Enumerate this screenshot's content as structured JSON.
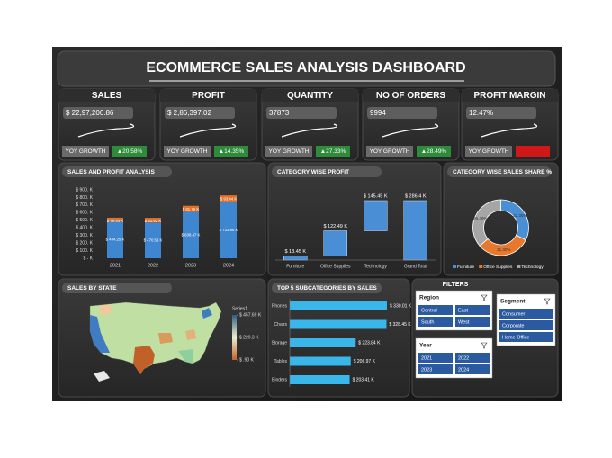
{
  "title": "ECOMMERCE SALES ANALYSIS DASHBOARD",
  "kpis": [
    {
      "label": "SALES",
      "value": "$ 22,97,200.86",
      "growth_label": "YOY GROWTH",
      "growth": "▲20.58%",
      "growth_color": "#2e8b3a"
    },
    {
      "label": "PROFIT",
      "value": "$ 2,86,397.02",
      "growth_label": "YOY GROWTH",
      "growth": "▲14.35%",
      "growth_color": "#2e8b3a"
    },
    {
      "label": "QUANTITY",
      "value": "37873",
      "growth_label": "YOY GROWTH",
      "growth": "▲27.33%",
      "growth_color": "#2e8b3a"
    },
    {
      "label": "NO OF ORDERS",
      "value": "9994",
      "growth_label": "YOY GROWTH",
      "growth": "▲28.49%",
      "growth_color": "#2e8b3a"
    },
    {
      "label": "PROFIT MARGIN",
      "value": "12.47%",
      "growth_label": "YOY GROWTH",
      "growth_color": "#d01818"
    }
  ],
  "chart_data": [
    {
      "type": "stacked_bar",
      "title": "SALES AND PROFIT ANALYSIS",
      "categories": [
        "2021",
        "2022",
        "2023",
        "2024"
      ],
      "series": [
        {
          "color": "#3f86d0",
          "values": [
            484.25,
            470.53,
            608.47,
            733.95
          ],
          "value_labels": [
            "$ 484.25 K",
            "$ 470.53 K",
            "$ 608.47 K",
            "$ 733.95 K"
          ]
        },
        {
          "color": "#e0712a",
          "values": [
            49.54,
            61.62,
            81.79,
            93.44
          ],
          "value_labels": [
            "$ 49.54 K",
            "$ 61.62 K",
            "$ 81.79 K",
            "$ 93.44 K"
          ]
        }
      ],
      "ylim": [
        0,
        900
      ],
      "yticks": [
        {
          "value": 0,
          "label": "$ - K"
        },
        {
          "value": 100,
          "label": "$ 100. K"
        },
        {
          "value": 200,
          "label": "$ 200. K"
        },
        {
          "value": 300,
          "label": "$ 300. K"
        },
        {
          "value": 400,
          "label": "$ 400. K"
        },
        {
          "value": 500,
          "label": "$ 500. K"
        },
        {
          "value": 600,
          "label": "$ 600. K"
        },
        {
          "value": 700,
          "label": "$ 700. K"
        },
        {
          "value": 800,
          "label": "$ 800. K"
        },
        {
          "value": 900,
          "label": "$ 900. K"
        }
      ]
    },
    {
      "type": "waterfall",
      "title": "CATEGORY WISE PROFIT",
      "categories": [
        "Furniture",
        "Office Supplies",
        "Technology",
        "Grand Total"
      ],
      "values": [
        18.45,
        122.49,
        145.45,
        286.4
      ],
      "value_labels": [
        "$ 18.45 K",
        "$ 122.49 K",
        "$ 145.45 K",
        "$ 286.4 K"
      ],
      "color": "#4a8fd6"
    },
    {
      "type": "donut",
      "title": "CATEGORY WISE SALES SHARE %",
      "categories": [
        "Furniture",
        "Office Supplies",
        "Technology"
      ],
      "values": [
        32.3,
        31.3,
        36.4
      ],
      "value_labels": [
        "32.30%",
        "31.30%",
        "36.40%"
      ],
      "colors": [
        "#4a8fd6",
        "#e8782c",
        "#a6a6a6"
      ]
    },
    {
      "type": "map",
      "title": "SALES BY STATE",
      "legend_title": "Series1",
      "colors": [
        "#2f5d86",
        "#efeecb",
        "#c2602a"
      ],
      "ticks": [
        {
          "value": 457.69,
          "label": "$ 457.69 K"
        },
        {
          "value": 229.3,
          "label": "$ 229.3 K"
        },
        {
          "value": 0.9,
          "label": "$ .90 K"
        }
      ]
    },
    {
      "type": "hbar",
      "title": "TOP 5 SUBCATEGORIES BY SALES",
      "categories": [
        "Phones",
        "Chairs",
        "Storage",
        "Tables",
        "Binders"
      ],
      "values": [
        330.01,
        328.45,
        223.84,
        206.97,
        203.41
      ],
      "value_labels": [
        "$ 330.01 K",
        "$ 328.45 K",
        "$ 223.84 K",
        "$ 206.97 K",
        "$ 203.41 K"
      ],
      "color": "#39b6ea"
    }
  ],
  "filters": {
    "title": "FILTERS",
    "slicers": [
      {
        "title": "Region",
        "items": [
          "Central",
          "East",
          "South",
          "West"
        ]
      },
      {
        "title": "Year",
        "items": [
          "2021",
          "2022",
          "2023",
          "2024"
        ]
      },
      {
        "title": "Segment",
        "items": [
          "Consumer",
          "Corporate",
          "Home Office"
        ]
      }
    ]
  }
}
